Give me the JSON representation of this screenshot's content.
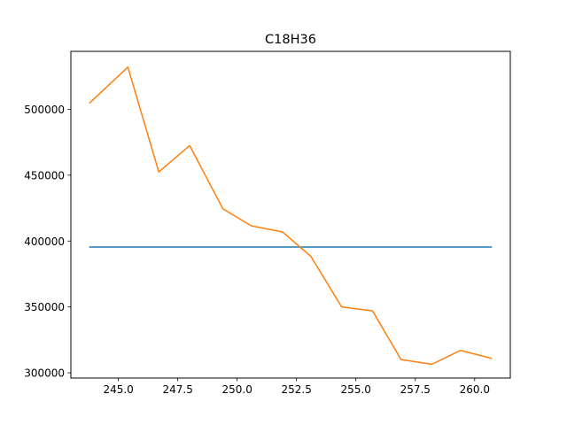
{
  "chart_data": {
    "type": "line",
    "title": "C18H36",
    "xlabel": "",
    "ylabel": "",
    "xlim": [
      243.0,
      261.5
    ],
    "ylim": [
      296000,
      544000
    ],
    "grid": false,
    "x_ticks": [
      245.0,
      247.5,
      250.0,
      252.5,
      255.0,
      257.5,
      260.0
    ],
    "x_tick_labels": [
      "245.0",
      "247.5",
      "250.0",
      "252.5",
      "255.0",
      "257.5",
      "260.0"
    ],
    "y_ticks": [
      300000,
      350000,
      400000,
      450000,
      500000
    ],
    "y_tick_labels": [
      "300000",
      "350000",
      "400000",
      "450000",
      "500000"
    ],
    "series": [
      {
        "color": "#1f77b4",
        "x": [
          243.8,
          260.7
        ],
        "y": [
          395500,
          395500
        ]
      },
      {
        "color": "#ff7f0e",
        "x": [
          243.8,
          245.4,
          246.7,
          248.0,
          249.4,
          250.6,
          251.9,
          253.1,
          254.4,
          255.7,
          256.9,
          258.2,
          259.4,
          260.7
        ],
        "y": [
          505000,
          532000,
          452500,
          472500,
          424500,
          411500,
          407000,
          388500,
          350000,
          347000,
          310000,
          306500,
          317000,
          311000
        ]
      }
    ]
  }
}
